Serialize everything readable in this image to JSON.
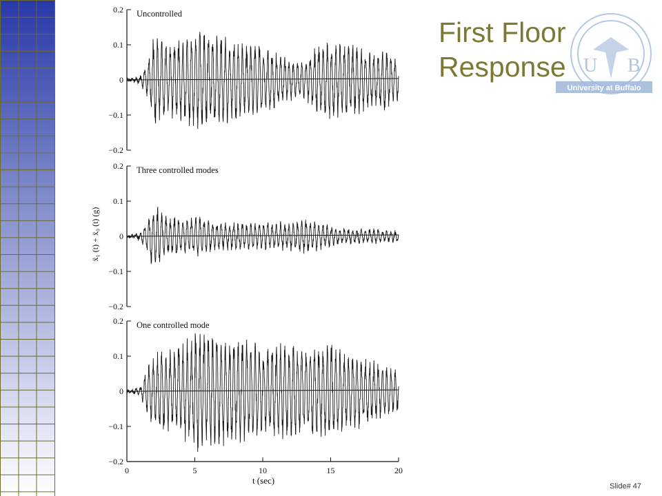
{
  "slide": {
    "title_line1": "First Floor",
    "title_line2": "Response",
    "slide_number": "Slide# 47",
    "logo_text": "University at Buffalo",
    "logo_letters": [
      "U",
      "B"
    ]
  },
  "colors": {
    "title": "#7a7a36",
    "grid_top": "#2838a8",
    "grid_bottom": "#ffffff",
    "grid_line": "#6b6b2e",
    "logo": "#9db6d8"
  },
  "chart_data": {
    "type": "line",
    "ylabel": "ẍ₁ (t) + ẍ₀ (t) (g)",
    "xlabel": "t (sec)",
    "xlim": [
      0,
      20
    ],
    "x_ticks": [
      "0",
      "5",
      "10",
      "15",
      "20"
    ],
    "panels": [
      {
        "name": "Uncontrolled",
        "ylim": [
          -0.2,
          0.2
        ],
        "y_ticks": [
          "0.2",
          "0.1",
          "0",
          "−0.1",
          "−0.2"
        ],
        "envelope": {
          "t": [
            0,
            0.5,
            1,
            1.5,
            2,
            3,
            4,
            5,
            6,
            7,
            8,
            9,
            10,
            11,
            12,
            13,
            14,
            15,
            16,
            17,
            18,
            19,
            20
          ],
          "amplitude": [
            0,
            0.005,
            0.01,
            0.05,
            0.13,
            0.11,
            0.12,
            0.15,
            0.14,
            0.13,
            0.12,
            0.11,
            0.1,
            0.08,
            0.06,
            0.05,
            0.1,
            0.12,
            0.11,
            0.1,
            0.08,
            0.09,
            0.06
          ]
        }
      },
      {
        "name": "Three controlled modes",
        "ylim": [
          -0.2,
          0.2
        ],
        "y_ticks": [
          "0.2",
          "0.1",
          "0",
          "−0.1",
          "−0.2"
        ],
        "envelope": {
          "t": [
            0,
            0.5,
            1,
            1.5,
            2,
            3,
            4,
            5,
            6,
            7,
            8,
            9,
            10,
            11,
            12,
            13,
            14,
            15,
            16,
            17,
            18,
            19,
            20
          ],
          "amplitude": [
            0,
            0.005,
            0.01,
            0.05,
            0.1,
            0.06,
            0.05,
            0.06,
            0.05,
            0.04,
            0.04,
            0.04,
            0.04,
            0.04,
            0.04,
            0.05,
            0.04,
            0.03,
            0.02,
            0.02,
            0.02,
            0.015,
            0.015
          ]
        }
      },
      {
        "name": "One controlled mode",
        "ylim": [
          -0.2,
          0.2
        ],
        "y_ticks": [
          "0.2",
          "0.1",
          "0",
          "−0.1",
          "−0.2"
        ],
        "envelope": {
          "t": [
            0,
            0.5,
            1,
            1.5,
            2,
            3,
            4,
            5,
            6,
            7,
            8,
            9,
            10,
            11,
            12,
            13,
            14,
            15,
            16,
            17,
            18,
            19,
            20
          ],
          "amplitude": [
            0,
            0.005,
            0.01,
            0.07,
            0.12,
            0.12,
            0.14,
            0.18,
            0.17,
            0.16,
            0.15,
            0.16,
            0.14,
            0.14,
            0.14,
            0.13,
            0.14,
            0.15,
            0.12,
            0.11,
            0.09,
            0.08,
            0.06
          ]
        }
      }
    ]
  }
}
